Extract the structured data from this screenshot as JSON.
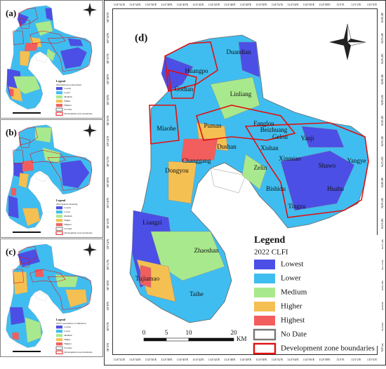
{
  "panels": [
    {
      "label": "(a)",
      "legend_title": "Legend",
      "legend_subtitle": "2022 Resource endowment",
      "items": [
        "Lowest",
        "Lower",
        "Medium",
        "Higher",
        "Highest",
        "No Date",
        "Development zone boundaries"
      ]
    },
    {
      "label": "(b)",
      "legend_title": "Legend",
      "legend_subtitle": "2022 Spatial clustering",
      "items": [
        "Lowest",
        "Lower",
        "Medium",
        "Higher",
        "Highest",
        "No Date",
        "Development zone boundaries"
      ]
    },
    {
      "label": "(c)",
      "legend_title": "Legend",
      "legend_subtitle": "2022 Convenience of utilization",
      "items": [
        "Lowest",
        "Lower",
        "Medium",
        "Higher",
        "Highest",
        "No Date",
        "Development zone boundaries"
      ]
    }
  ],
  "main": {
    "label": "(d)",
    "legend_title": "Legend",
    "legend_subtitle": "2022 CLFI",
    "items": [
      "Lowest",
      "Lower",
      "Medium",
      "Higher",
      "Highest",
      "No Date",
      "Development zone boundaries"
    ],
    "colors": [
      "#4b4fe6",
      "#3fbdf0",
      "#a9e98d",
      "#f5c052",
      "#f25e5e",
      "#ffffff",
      "#ffffff"
    ],
    "places": [
      "Duandian",
      "Huangpo",
      "Godian",
      "Linliang",
      "Miaohe",
      "Puman",
      "Fanglou",
      "Beizhuang",
      "Gelou",
      "Xishan",
      "Yanji",
      "Yangye",
      "Dushan",
      "Changgang",
      "Dongyou",
      "Zelin",
      "Xinmiao",
      "Shawo",
      "Bishidu",
      "Huahu",
      "Tingzu",
      "Liangzi",
      "Zhaoshan",
      "Tujiamao",
      "Taihe"
    ],
    "scale": [
      "0",
      "5",
      "10",
      "20"
    ],
    "scale_unit": "KM",
    "lon_labels": [
      "114°32'E",
      "114°34'E",
      "114°36'E",
      "114°38'E",
      "114°40'E",
      "114°42'E",
      "114°44'E",
      "114°46'E",
      "114°48'E",
      "114°50'E",
      "114°52'E",
      "114°54'E",
      "114°56'E",
      "114°58'E",
      "115°E",
      "115°2'E",
      "115°4'E"
    ],
    "lat_labels": [
      "30°36'N",
      "30°34'N",
      "30°32'N",
      "30°30'N",
      "30°28'N",
      "30°26'N",
      "30°24'N",
      "30°22'N",
      "30°20'N",
      "30°18'N",
      "30°16'N",
      "30°14'N",
      "30°12'N",
      "30°10'N",
      "30°8'N",
      "30°6'N",
      "30°4'N"
    ]
  }
}
